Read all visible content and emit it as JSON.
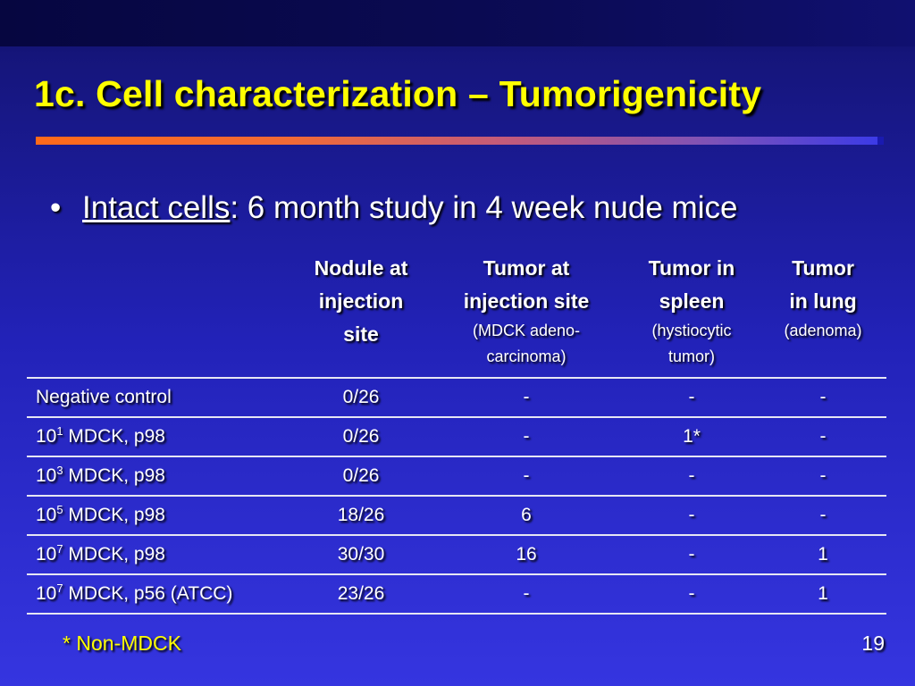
{
  "slide": {
    "title": "1c. Cell characterization – Tumorigenicity",
    "bullet": {
      "marker": "•",
      "emphasis": "Intact cells",
      "text": ": 6 month study in 4 week nude mice"
    },
    "footnote": "* Non-MDCK",
    "page_number": "19",
    "colors": {
      "title": "#ffff00",
      "background": "#2a2ac8",
      "footnote": "#ffff00"
    }
  },
  "table": {
    "headers": [
      {
        "line1": "",
        "line2": "",
        "line3": "",
        "sub1": "",
        "sub2": ""
      },
      {
        "line1": "Nodule at",
        "line2": "injection",
        "line3": "site",
        "sub1": "",
        "sub2": ""
      },
      {
        "line1": "Tumor at",
        "line2": "injection site",
        "line3": "",
        "sub1": "(MDCK adeno-",
        "sub2": "carcinoma)"
      },
      {
        "line1": "Tumor in",
        "line2": "spleen",
        "line3": "",
        "sub1": "(hystiocytic",
        "sub2": "tumor)"
      },
      {
        "line1": "Tumor",
        "line2": "in lung",
        "line3": "",
        "sub1": "(adenoma)",
        "sub2": ""
      }
    ],
    "rows": [
      {
        "base": "Negative control",
        "exp": "",
        "rest": "",
        "nodule": "0/26",
        "tumor_site": "-",
        "spleen": "-",
        "lung": "-"
      },
      {
        "base": "10",
        "exp": "1",
        "rest": " MDCK, p98",
        "nodule": "0/26",
        "tumor_site": "-",
        "spleen": "1*",
        "lung": "-"
      },
      {
        "base": "10",
        "exp": "3",
        "rest": " MDCK, p98",
        "nodule": "0/26",
        "tumor_site": "-",
        "spleen": "-",
        "lung": "-"
      },
      {
        "base": "10",
        "exp": "5",
        "rest": " MDCK, p98",
        "nodule": "18/26",
        "tumor_site": "6",
        "spleen": "-",
        "lung": "-"
      },
      {
        "base": "10",
        "exp": "7",
        "rest": " MDCK, p98",
        "nodule": "30/30",
        "tumor_site": "16",
        "spleen": "-",
        "lung": "1"
      },
      {
        "base": "10",
        "exp": "7",
        "rest": " MDCK, p56 (ATCC)",
        "nodule": "23/26",
        "tumor_site": "-",
        "spleen": "-",
        "lung": "1"
      }
    ]
  }
}
